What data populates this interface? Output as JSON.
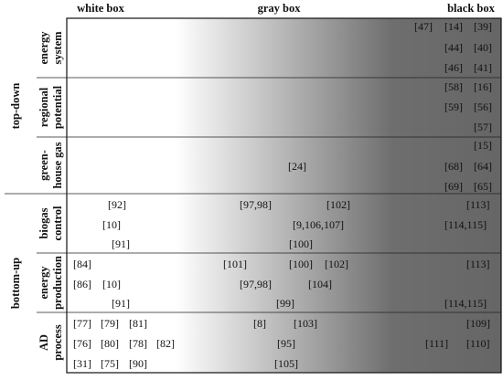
{
  "headers": [
    "white box",
    "gray box",
    "black box"
  ],
  "groups": [
    {
      "label": "top-down",
      "rows": [
        {
          "label_lines": [
            "energy",
            "system"
          ],
          "refs": [
            "[47]",
            "[14]",
            "[39]",
            "[44]",
            "[40]",
            "[46]",
            "[41]"
          ]
        },
        {
          "label_lines": [
            "regional",
            "potential"
          ],
          "refs": [
            "[58]",
            "[16]",
            "[59]",
            "[56]",
            "[57]"
          ]
        },
        {
          "label_lines": [
            "green-",
            "house gas"
          ],
          "refs": [
            "[15]",
            "[24]",
            "[68]",
            "[64]",
            "[69]",
            "[65]"
          ]
        }
      ]
    },
    {
      "label": "bottom-up",
      "rows": [
        {
          "label_lines": [
            "biogas",
            "control"
          ],
          "refs": [
            "[92]",
            "[97,98]",
            "[102]",
            "[113]",
            "[10]",
            "[9,106,107]",
            "[114,115]",
            "[91]",
            "[100]"
          ]
        },
        {
          "label_lines": [
            "energy",
            "production"
          ],
          "refs": [
            "[84]",
            "[101]",
            "[100]",
            "[102]",
            "[113]",
            "[86]",
            "[10]",
            "[97,98]",
            "[104]",
            "[91]",
            "[99]",
            "[114,115]"
          ]
        },
        {
          "label_lines": [
            "AD",
            "process"
          ],
          "refs": [
            "[77]",
            "[79]",
            "[81]",
            "[8]",
            "[103]",
            "[109]",
            "[76]",
            "[80]",
            "[78]",
            "[82]",
            "[95]",
            "[111]",
            "[110]",
            "[31]",
            "[75]",
            "[90]",
            "[105]"
          ]
        }
      ]
    }
  ]
}
